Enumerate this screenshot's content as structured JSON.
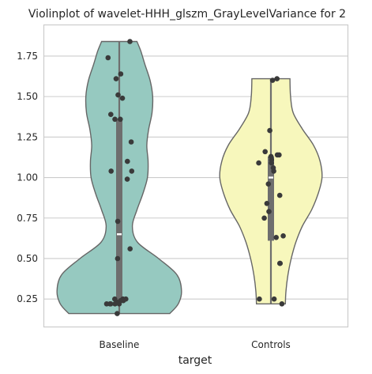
{
  "chart_data": {
    "type": "violin",
    "title": "Violinplot of wavelet-HHH_glszm_GrayLevelVariance for 2",
    "xlabel": "target",
    "ylabel": "",
    "categories": [
      "Baseline",
      "Controls"
    ],
    "ylim": [
      0.08,
      1.94
    ],
    "yticks": [
      0.25,
      0.5,
      0.75,
      1.0,
      1.25,
      1.5,
      1.75
    ],
    "ytick_labels": [
      "0.25",
      "0.50",
      "0.75",
      "1.00",
      "1.25",
      "1.50",
      "1.75"
    ],
    "grid": "horizontal",
    "colors": {
      "Baseline": "#96c9c0",
      "Controls": "#f7f7bc",
      "outline": "#666666",
      "points": "#3a3a3a",
      "box": "#6e6e6e"
    },
    "series": [
      {
        "category": "Baseline",
        "min": 0.16,
        "max": 1.84,
        "q1": 0.23,
        "median": 0.65,
        "q3": 1.36,
        "density": [
          [
            0.16,
            0.77
          ],
          [
            0.22,
            0.9
          ],
          [
            0.3,
            0.95
          ],
          [
            0.4,
            0.88
          ],
          [
            0.5,
            0.6
          ],
          [
            0.6,
            0.28
          ],
          [
            0.7,
            0.2
          ],
          [
            0.8,
            0.27
          ],
          [
            0.9,
            0.36
          ],
          [
            1.0,
            0.43
          ],
          [
            1.1,
            0.44
          ],
          [
            1.2,
            0.42
          ],
          [
            1.3,
            0.45
          ],
          [
            1.4,
            0.5
          ],
          [
            1.5,
            0.51
          ],
          [
            1.6,
            0.47
          ],
          [
            1.7,
            0.39
          ],
          [
            1.78,
            0.33
          ],
          [
            1.84,
            0.27
          ]
        ],
        "points": [
          1.84,
          1.74,
          1.64,
          1.61,
          1.51,
          1.49,
          1.39,
          1.36,
          1.36,
          1.22,
          1.1,
          1.04,
          1.04,
          0.99,
          0.73,
          0.56,
          0.5,
          0.25,
          0.25,
          0.25,
          0.24,
          0.24,
          0.23,
          0.22,
          0.22,
          0.22,
          0.22,
          0.22,
          0.16
        ]
      },
      {
        "category": "Controls",
        "min": 0.22,
        "max": 1.61,
        "q1": 0.61,
        "median": 1.0,
        "q3": 1.13,
        "density": [
          [
            0.22,
            0.22
          ],
          [
            0.3,
            0.23
          ],
          [
            0.4,
            0.26
          ],
          [
            0.5,
            0.31
          ],
          [
            0.6,
            0.38
          ],
          [
            0.7,
            0.48
          ],
          [
            0.8,
            0.62
          ],
          [
            0.9,
            0.72
          ],
          [
            1.0,
            0.78
          ],
          [
            1.1,
            0.75
          ],
          [
            1.2,
            0.65
          ],
          [
            1.3,
            0.48
          ],
          [
            1.4,
            0.34
          ],
          [
            1.5,
            0.3
          ],
          [
            1.61,
            0.29
          ]
        ],
        "points": [
          1.61,
          1.6,
          1.29,
          1.16,
          1.14,
          1.14,
          1.13,
          1.11,
          1.09,
          1.09,
          1.06,
          1.04,
          0.96,
          0.89,
          0.84,
          0.79,
          0.75,
          0.64,
          0.63,
          0.47,
          0.47,
          0.25,
          0.25,
          0.22
        ]
      }
    ]
  }
}
